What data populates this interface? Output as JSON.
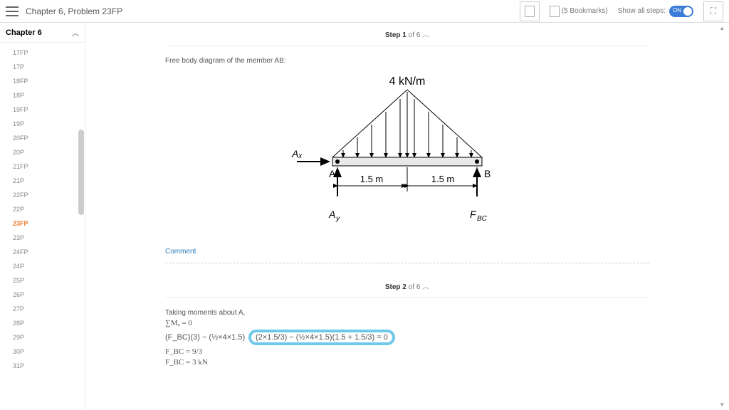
{
  "header": {
    "title": "Chapter 6, Problem 23FP",
    "bookmarks": "(5 Bookmarks)",
    "show_steps": "Show all steps:",
    "toggle": "ON"
  },
  "sidebar": {
    "chapter": "Chapter 6",
    "items": [
      "17FP",
      "17P",
      "18FP",
      "18P",
      "19FP",
      "19P",
      "20FP",
      "20P",
      "21FP",
      "21P",
      "22FP",
      "22P",
      "23FP",
      "23P",
      "24FP",
      "24P",
      "25P",
      "26P",
      "27P",
      "28P",
      "29P",
      "30P",
      "31P"
    ],
    "active_index": 12
  },
  "step1": {
    "head_a": "Step 1",
    "head_b": " of 6",
    "text": "Free body diagram of the member AB:",
    "load": "4 kN/m",
    "ax": "Aₓ",
    "a": "A",
    "b": "B",
    "ay": "A_y",
    "fbc": "F_BC",
    "d1": "1.5 m",
    "d2": "1.5 m",
    "comment": "Comment"
  },
  "step2": {
    "head_a": "Step 2",
    "head_b": " of 6",
    "text": "Taking moments about A,",
    "eq1": "∑Mₐ = 0",
    "eq2a": "(F_BC)(3) − (½×4×1.5)",
    "eq2b": "(2×1.5/3) − (½×4×1.5)(1.5 + 1.5/3) = 0",
    "eq3": "F_BC = 9/3",
    "eq4": "F_BC = 3 kN"
  },
  "diagram": {
    "beam_fill": "#e8e8e8",
    "stroke": "#000",
    "arrow": "#000",
    "bg": "#fff"
  }
}
